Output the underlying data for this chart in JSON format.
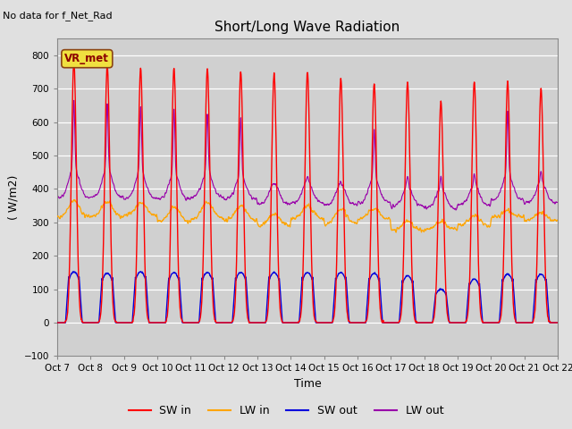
{
  "title": "Short/Long Wave Radiation",
  "xlabel": "Time",
  "ylabel": "( W/m2)",
  "ylim": [
    -100,
    850
  ],
  "yticks": [
    -100,
    0,
    100,
    200,
    300,
    400,
    500,
    600,
    700,
    800
  ],
  "note": "No data for f_Net_Rad",
  "station_label": "VR_met",
  "bg_color": "#e0e0e0",
  "plot_bg_color": "#d0d0d0",
  "grid_color": "#ffffff",
  "line_colors": {
    "SW_in": "#ff0000",
    "LW_in": "#ffa500",
    "SW_out": "#0000dd",
    "LW_out": "#9900aa"
  },
  "legend_labels": [
    "SW in",
    "LW in",
    "SW out",
    "LW out"
  ],
  "n_days": 15,
  "dt_hours": 0.25,
  "x_tick_labels": [
    "Oct 7",
    "Oct 8",
    "Oct 9",
    "Oct 10",
    "Oct 11",
    "Oct 12",
    "Oct 13",
    "Oct 14",
    "Oct 15",
    "Oct 16",
    "Oct 17",
    "Oct 18",
    "Oct 19",
    "Oct 20",
    "Oct 21",
    "Oct 22"
  ],
  "SW_in_peaks": [
    780,
    770,
    760,
    760,
    760,
    750,
    745,
    750,
    730,
    715,
    720,
    660,
    720,
    720,
    700
  ],
  "SW_out_peaks": [
    152,
    148,
    152,
    150,
    150,
    150,
    150,
    150,
    150,
    148,
    140,
    100,
    130,
    145,
    145
  ],
  "LW_in_base": [
    315,
    315,
    320,
    300,
    310,
    305,
    290,
    310,
    295,
    310,
    275,
    278,
    290,
    315,
    305
  ],
  "LW_in_bump": [
    50,
    48,
    40,
    45,
    50,
    45,
    35,
    40,
    45,
    30,
    30,
    25,
    30,
    20,
    25
  ],
  "LW_out_base": [
    375,
    375,
    370,
    368,
    375,
    368,
    355,
    358,
    352,
    358,
    348,
    342,
    352,
    368,
    358
  ],
  "LW_out_spike": [
    210,
    205,
    205,
    200,
    180,
    175,
    0,
    15,
    10,
    150,
    30,
    40,
    35,
    200,
    30
  ],
  "LW_out_shoulder": [
    90,
    88,
    85,
    82,
    80,
    75,
    60,
    65,
    60,
    80,
    60,
    58,
    60,
    80,
    65
  ]
}
